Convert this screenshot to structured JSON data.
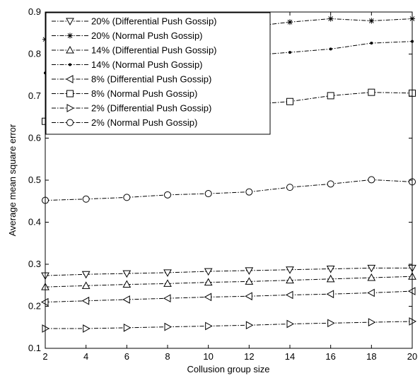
{
  "chart_data": {
    "type": "line",
    "title": "",
    "xlabel": "Collusion group size",
    "ylabel": "Average mean square error",
    "xlim": [
      2,
      20
    ],
    "ylim": [
      0.1,
      0.9
    ],
    "x": [
      2,
      4,
      6,
      8,
      10,
      12,
      14,
      16,
      18,
      20
    ],
    "xticks": [
      "2",
      "4",
      "6",
      "8",
      "10",
      "12",
      "14",
      "16",
      "18",
      "20"
    ],
    "yticks": [
      "0.1",
      "0.2",
      "0.3",
      "0.4",
      "0.5",
      "0.6",
      "0.7",
      "0.8",
      "0.9"
    ],
    "grid": false,
    "legend_position": "top-left",
    "series": [
      {
        "name": "20% (Differential Push Gossip)",
        "marker": "triangle-down",
        "values": [
          0.273,
          0.276,
          0.278,
          0.28,
          0.283,
          0.285,
          0.287,
          0.289,
          0.291,
          0.291
        ]
      },
      {
        "name": "20% (Normal Push Gossip)",
        "marker": "star",
        "values": [
          0.835,
          0.845,
          0.85,
          0.855,
          0.86,
          0.865,
          0.876,
          0.884,
          0.879,
          0.884
        ]
      },
      {
        "name": "14% (Differential Push Gossip)",
        "marker": "triangle-up",
        "values": [
          0.246,
          0.249,
          0.252,
          0.254,
          0.257,
          0.259,
          0.262,
          0.265,
          0.268,
          0.271
        ]
      },
      {
        "name": "14% (Normal Push Gossip)",
        "marker": "dot",
        "values": [
          0.755,
          0.765,
          0.775,
          0.783,
          0.79,
          0.797,
          0.804,
          0.812,
          0.826,
          0.83
        ]
      },
      {
        "name": "8% (Differential Push Gossip)",
        "marker": "triangle-left",
        "values": [
          0.21,
          0.213,
          0.216,
          0.219,
          0.222,
          0.224,
          0.227,
          0.229,
          0.232,
          0.236
        ]
      },
      {
        "name": "8% (Normal Push Gossip)",
        "marker": "square",
        "values": [
          0.64,
          0.65,
          0.66,
          0.668,
          0.674,
          0.68,
          0.687,
          0.701,
          0.709,
          0.707
        ]
      },
      {
        "name": "2% (Differential Push Gossip)",
        "marker": "triangle-right",
        "values": [
          0.147,
          0.147,
          0.149,
          0.151,
          0.153,
          0.155,
          0.158,
          0.16,
          0.162,
          0.164
        ]
      },
      {
        "name": "2% (Normal Push Gossip)",
        "marker": "circle",
        "values": [
          0.452,
          0.455,
          0.459,
          0.465,
          0.468,
          0.472,
          0.483,
          0.491,
          0.501,
          0.496
        ]
      }
    ]
  }
}
